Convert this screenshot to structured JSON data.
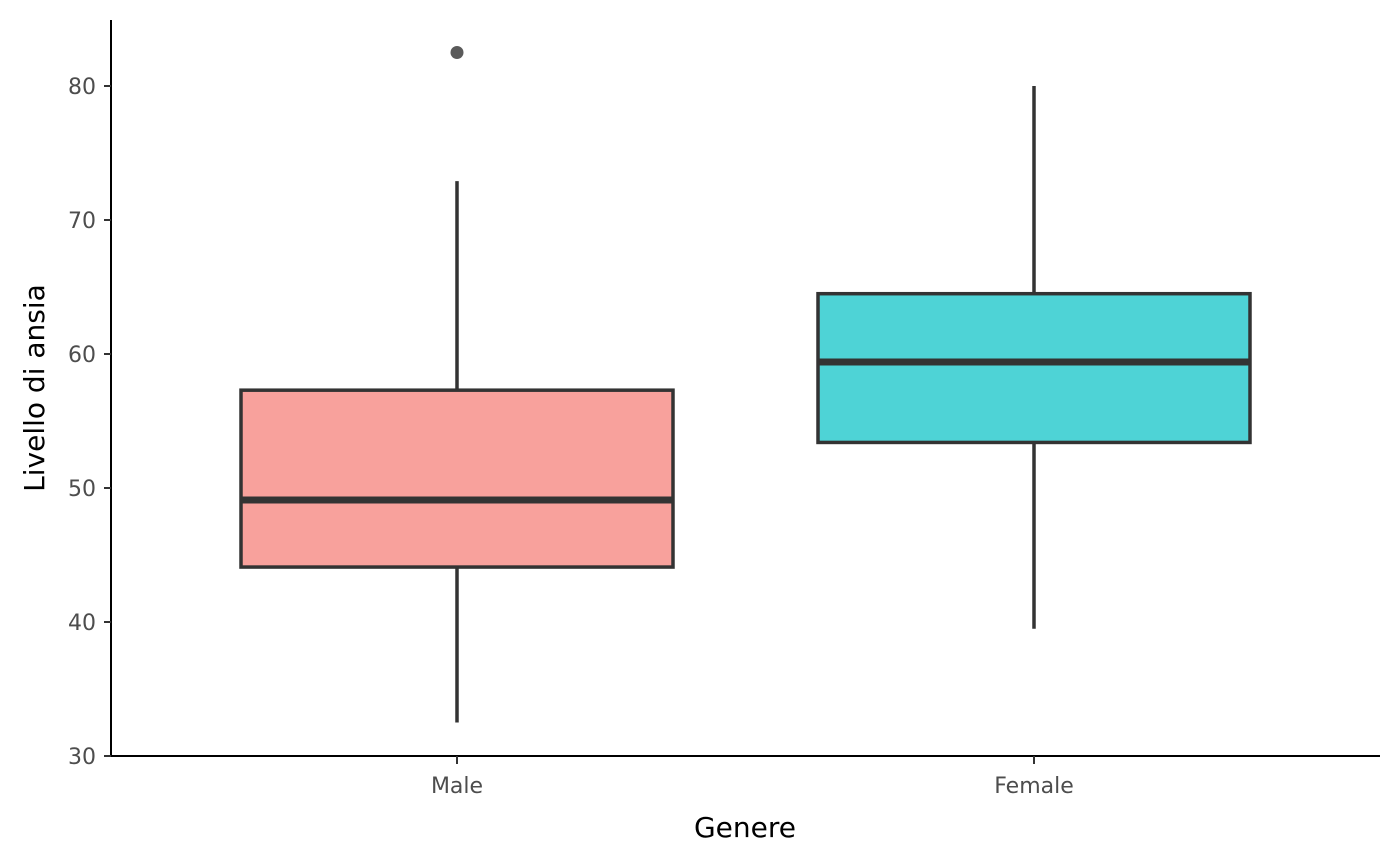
{
  "chart_data": {
    "type": "boxplot",
    "title": "",
    "xlabel": "Genere",
    "ylabel": "Livello di ansia",
    "ylim": [
      30,
      85
    ],
    "yticks": [
      30,
      40,
      50,
      60,
      70,
      80
    ],
    "categories": [
      "Male",
      "Female"
    ],
    "boxes": [
      {
        "category": "Male",
        "fill": "#F8A19C",
        "whisker_low": 32.5,
        "q1": 44.1,
        "median": 49.1,
        "q3": 57.3,
        "whisker_high": 72.9,
        "outliers": [
          82.5
        ]
      },
      {
        "category": "Female",
        "fill": "#4ED3D6",
        "whisker_low": 39.5,
        "q1": 53.4,
        "median": 59.4,
        "q3": 64.5,
        "whisker_high": 80.0,
        "outliers": []
      }
    ],
    "grid": false,
    "legend": "none",
    "line_color": "#333333",
    "outlier_color": "#5a5a5a"
  }
}
